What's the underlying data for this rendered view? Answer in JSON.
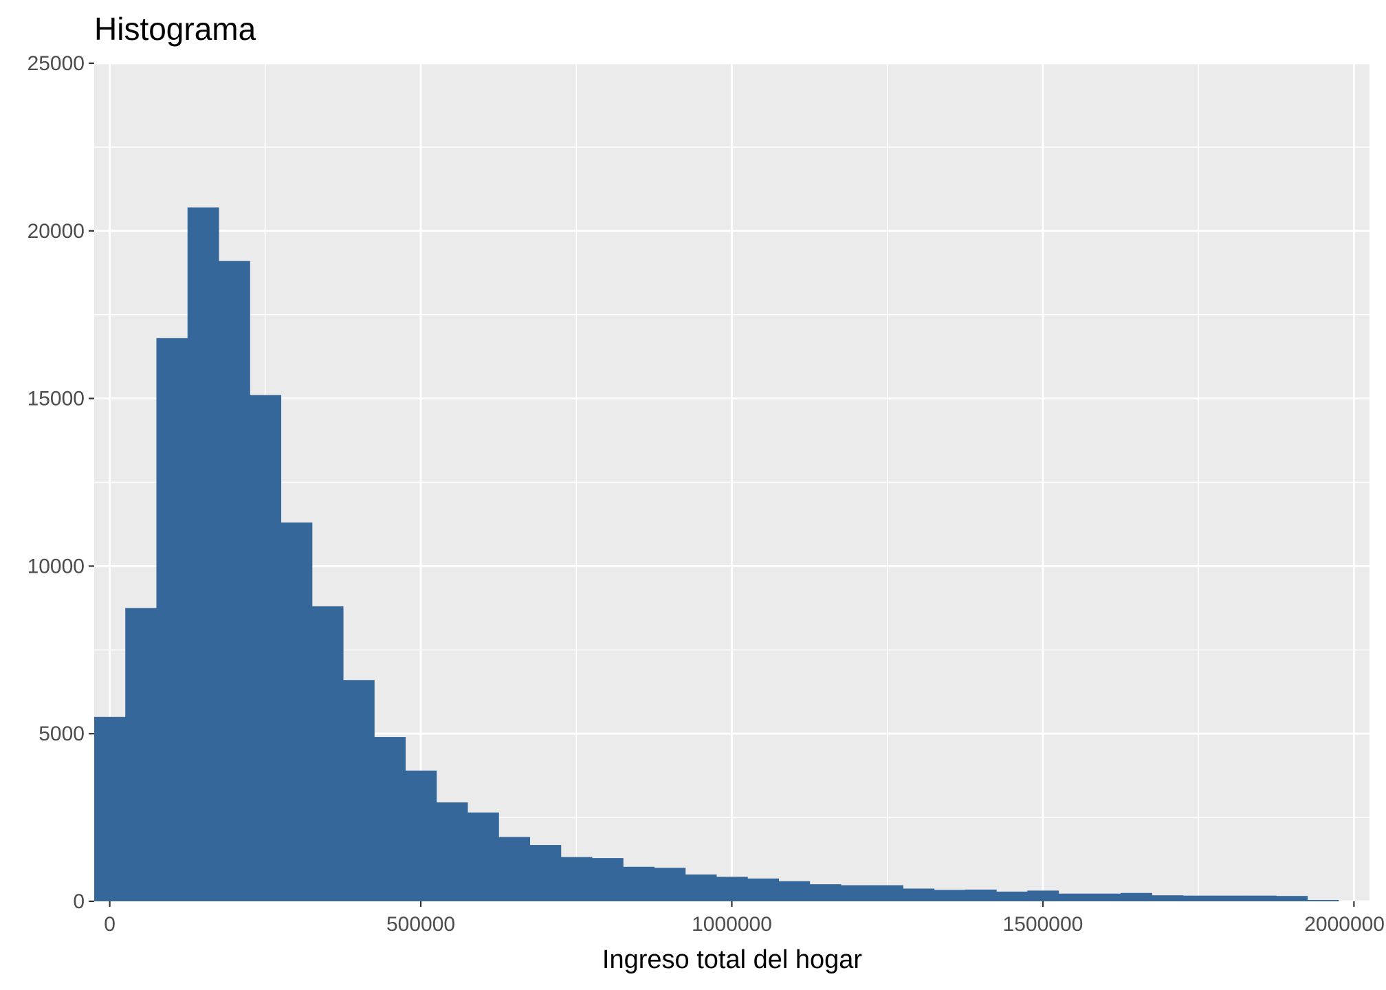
{
  "chart_data": {
    "type": "bar",
    "subtype": "histogram",
    "title": "Histograma",
    "xlabel": "Ingreso total del hogar",
    "ylabel": "",
    "bin_width": 50000,
    "x_start": -25000,
    "xlim": [
      -25000,
      2025000
    ],
    "ylim": [
      0,
      25000
    ],
    "x_ticks": [
      0,
      500000,
      1000000,
      1500000,
      2000000
    ],
    "x_tick_labels": [
      "0",
      "500000",
      "1000000",
      "1500000",
      "2000000"
    ],
    "y_ticks": [
      0,
      5000,
      10000,
      15000,
      20000,
      25000
    ],
    "y_tick_labels": [
      "0",
      "5000",
      "10000",
      "15000",
      "20000",
      "25000"
    ],
    "values": [
      5500,
      8750,
      16800,
      20700,
      19100,
      15100,
      11300,
      8800,
      6600,
      4900,
      3900,
      2950,
      2650,
      1920,
      1680,
      1320,
      1290,
      1030,
      1000,
      800,
      730,
      680,
      600,
      510,
      480,
      480,
      380,
      340,
      350,
      290,
      320,
      230,
      230,
      250,
      180,
      170,
      170,
      170,
      160,
      40
    ],
    "grid": true,
    "colors": {
      "bar": "#35679A",
      "panel": "#EBEBEB",
      "grid": "#FFFFFF"
    }
  }
}
